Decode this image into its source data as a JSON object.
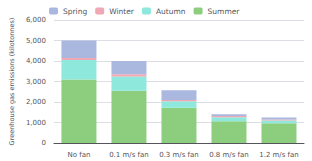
{
  "chart_data": {
    "type": "bar",
    "stacked": true,
    "ylabel": "Greenhouse gas emissions (kilotonnes)",
    "categories": [
      "No fan",
      "0.1 m/s fan",
      "0.3 m/s fan",
      "0.8 m/s fan",
      "1.2 m/s fan"
    ],
    "series": [
      {
        "name": "Summer",
        "color": "#8dce7e",
        "values": [
          3100,
          2550,
          1720,
          1060,
          960
        ]
      },
      {
        "name": "Autumn",
        "color": "#8ee8dc",
        "values": [
          950,
          700,
          320,
          200,
          140
        ]
      },
      {
        "name": "Winter",
        "color": "#f0a8b4",
        "values": [
          100,
          100,
          60,
          60,
          50
        ]
      },
      {
        "name": "Spring",
        "color": "#aab8e0",
        "values": [
          850,
          650,
          470,
          80,
          90
        ]
      }
    ],
    "ylim": [
      0,
      6000
    ],
    "yticks": [
      0,
      1000,
      2000,
      3000,
      4000,
      5000,
      6000
    ],
    "grid": true,
    "legend": "upper left"
  }
}
